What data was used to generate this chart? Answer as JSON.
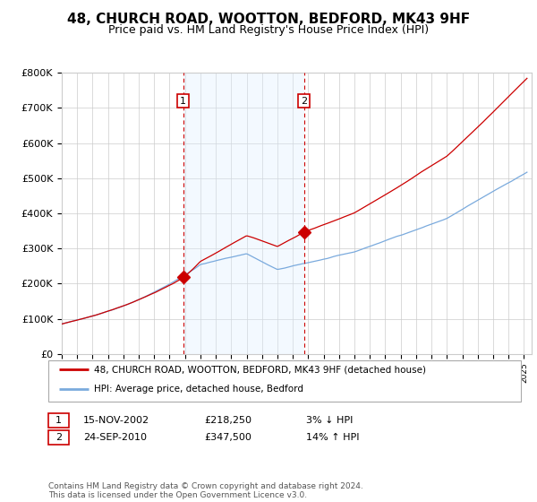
{
  "title": "48, CHURCH ROAD, WOOTTON, BEDFORD, MK43 9HF",
  "subtitle": "Price paid vs. HM Land Registry's House Price Index (HPI)",
  "ylim": [
    0,
    800000
  ],
  "yticks": [
    0,
    100000,
    200000,
    300000,
    400000,
    500000,
    600000,
    700000,
    800000
  ],
  "ytick_labels": [
    "£0",
    "£100K",
    "£200K",
    "£300K",
    "£400K",
    "£500K",
    "£600K",
    "£700K",
    "£800K"
  ],
  "xmin": 1995,
  "xmax": 2025.5,
  "sale1_date_num": 2002.88,
  "sale1_price": 218250,
  "sale1_label": "1",
  "sale1_date_str": "15-NOV-2002",
  "sale1_price_str": "£218,250",
  "sale1_hpi_str": "3% ↓ HPI",
  "sale2_date_num": 2010.73,
  "sale2_price": 347500,
  "sale2_label": "2",
  "sale2_date_str": "24-SEP-2010",
  "sale2_price_str": "£347,500",
  "sale2_hpi_str": "14% ↑ HPI",
  "line1_color": "#cc0000",
  "line2_color": "#7aaadd",
  "shade_color": "#ddeeff",
  "dashed_color": "#cc0000",
  "grid_color": "#cccccc",
  "bg_color": "#ffffff",
  "title_fontsize": 11,
  "subtitle_fontsize": 9,
  "legend1_label": "48, CHURCH ROAD, WOOTTON, BEDFORD, MK43 9HF (detached house)",
  "legend2_label": "HPI: Average price, detached house, Bedford",
  "footer": "Contains HM Land Registry data © Crown copyright and database right 2024.\nThis data is licensed under the Open Government Licence v3.0."
}
